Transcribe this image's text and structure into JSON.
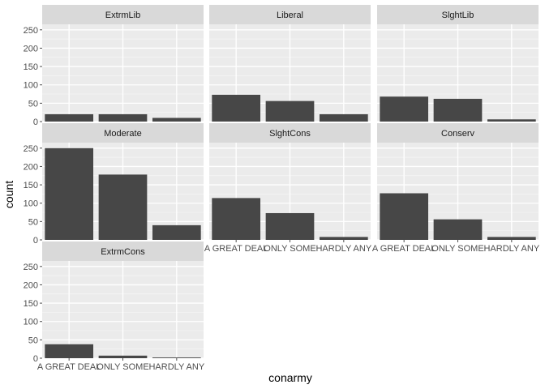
{
  "chart_data": {
    "type": "bar",
    "faceted": true,
    "xlabel": "conarmy",
    "ylabel": "count",
    "categories": [
      "A GREAT DEAL",
      "ONLY SOME",
      "HARDLY ANY"
    ],
    "ylim": [
      0,
      265
    ],
    "yticks": [
      0,
      50,
      100,
      150,
      200,
      250
    ],
    "grid": true,
    "colors": {
      "bar": "#474747",
      "panel": "#ebebeb",
      "strip": "#d9d9d9",
      "grid_major": "#ffffff",
      "tick": "#4d4d4d"
    },
    "facets": [
      {
        "name": "ExtrmLib",
        "values": [
          20,
          20,
          10
        ]
      },
      {
        "name": "Liberal",
        "values": [
          73,
          56,
          20
        ]
      },
      {
        "name": "SlghtLib",
        "values": [
          68,
          62,
          6
        ]
      },
      {
        "name": "Moderate",
        "values": [
          250,
          178,
          40
        ]
      },
      {
        "name": "SlghtCons",
        "values": [
          114,
          73,
          8
        ]
      },
      {
        "name": "Conserv",
        "values": [
          127,
          56,
          8
        ]
      },
      {
        "name": "ExtrmCons",
        "values": [
          38,
          7,
          2
        ]
      }
    ]
  }
}
